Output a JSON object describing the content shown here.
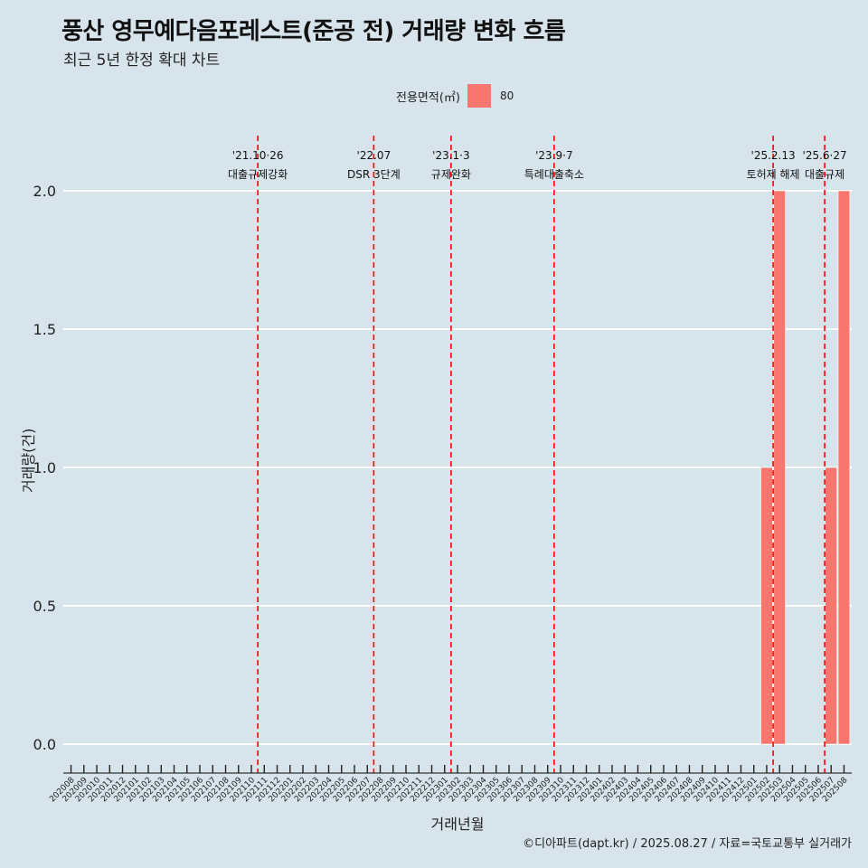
{
  "header": {
    "title": "풍산 영무예다음포레스트(준공 전) 거래량 변화 흐름",
    "subtitle": "최근 5년 한정 확대 차트"
  },
  "legend": {
    "title": "전용면적(㎡)",
    "entries": [
      {
        "label": "80",
        "color": "#f8766d"
      }
    ]
  },
  "footer": {
    "caption": "©디아파트(dapt.kr) / 2025.08.27 / 자료=국토교통부 실거래가"
  },
  "chart_data": {
    "type": "bar",
    "title": "풍산 영무예다음포레스트(준공 전) 거래량 변화 흐름",
    "xlabel": "거래년월",
    "ylabel": "거래량(건)",
    "ylim": [
      0,
      2
    ],
    "yticks": [
      "0.0",
      "0.5",
      "1.0",
      "1.5",
      "2.0"
    ],
    "grid": true,
    "legend_position": "top",
    "categories": [
      "202008",
      "202009",
      "202010",
      "202011",
      "202012",
      "202101",
      "202102",
      "202103",
      "202104",
      "202105",
      "202106",
      "202107",
      "202108",
      "202109",
      "202110",
      "202111",
      "202112",
      "202201",
      "202202",
      "202203",
      "202204",
      "202205",
      "202206",
      "202207",
      "202208",
      "202209",
      "202210",
      "202211",
      "202212",
      "202301",
      "202302",
      "202303",
      "202304",
      "202305",
      "202306",
      "202307",
      "202308",
      "202309",
      "202310",
      "202311",
      "202312",
      "202401",
      "202402",
      "202403",
      "202404",
      "202405",
      "202406",
      "202407",
      "202408",
      "202409",
      "202410",
      "202411",
      "202412",
      "202501",
      "202502",
      "202503",
      "202504",
      "202505",
      "202506",
      "202507",
      "202508"
    ],
    "series": [
      {
        "name": "80",
        "color": "#f8766d",
        "values": [
          0,
          0,
          0,
          0,
          0,
          0,
          0,
          0,
          0,
          0,
          0,
          0,
          0,
          0,
          0,
          0,
          0,
          0,
          0,
          0,
          0,
          0,
          0,
          0,
          0,
          0,
          0,
          0,
          0,
          0,
          0,
          0,
          0,
          0,
          0,
          0,
          0,
          0,
          0,
          0,
          0,
          0,
          0,
          0,
          0,
          0,
          0,
          0,
          0,
          0,
          0,
          0,
          0,
          0,
          1,
          2,
          0,
          0,
          0,
          1,
          2
        ]
      }
    ],
    "annotations": [
      {
        "date": "'21.10·26",
        "text": "대출규제강화",
        "x": 14.5
      },
      {
        "date": "'22.07",
        "text": "DSR 3단계",
        "x": 23.5
      },
      {
        "date": "'23.1·3",
        "text": "규제완화",
        "x": 29.5
      },
      {
        "date": "'23.9·7",
        "text": "특례대출축소",
        "x": 37.5
      },
      {
        "date": "'25.2.13",
        "text": "토허제 해제",
        "x": 54.5
      },
      {
        "date": "'25.6·27",
        "text": "대출규제",
        "x": 58.5
      }
    ]
  }
}
